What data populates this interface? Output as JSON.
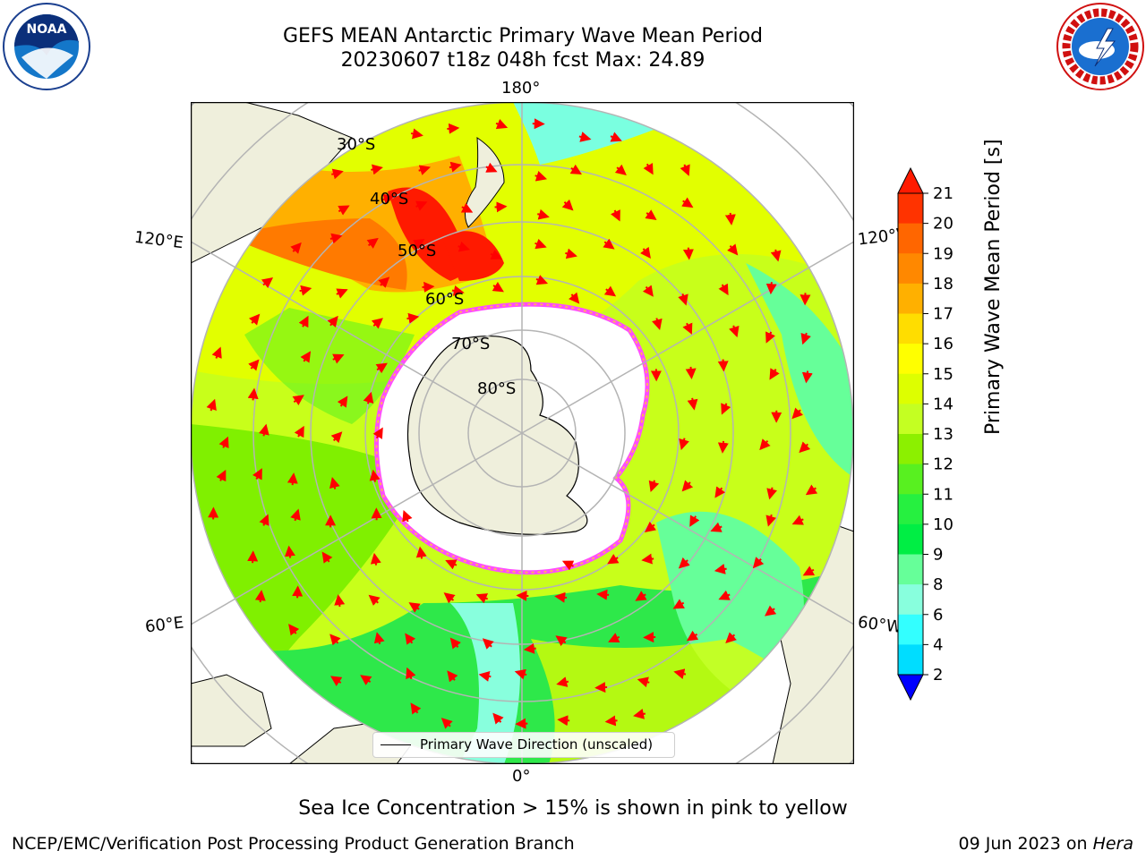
{
  "header": {
    "title_line1": "GEFS MEAN Antarctic Primary Wave Mean Period",
    "title_line2": "20230607 t18z 048h fcst   Max: 24.89"
  },
  "logos": {
    "noaa": "NOAA",
    "nws": "NATIONAL WEATHER SERVICE"
  },
  "map": {
    "lon_labels": {
      "top": "180°",
      "left_upper": "120°E",
      "right_upper": "120°W",
      "left_lower": "60°E",
      "right_lower": "60°W",
      "bottom": "0°"
    },
    "lat_labels": [
      "30°S",
      "40°S",
      "50°S",
      "60°S",
      "70°S",
      "80°S"
    ],
    "colors": {
      "land": "#efefdc",
      "sea_ice": "#ff4dff",
      "arrow": "#ff0000",
      "grid": "#b4b4b4"
    },
    "legend_text": "Primary Wave Direction (unscaled)"
  },
  "colorbar": {
    "title": "Primary Wave Mean Period [s]",
    "ticks": [
      "21",
      "20",
      "19",
      "18",
      "17",
      "16",
      "15",
      "14",
      "13",
      "12",
      "11",
      "10",
      "9",
      "8",
      "6",
      "4",
      "2"
    ],
    "colors": [
      "#ff1a00",
      "#ff3300",
      "#ff6600",
      "#ff8800",
      "#ffb000",
      "#ffdd00",
      "#ffff00",
      "#ddff00",
      "#c4ff22",
      "#8cf000",
      "#58f020",
      "#26f040",
      "#00ee44",
      "#66ff99",
      "#88ffdd",
      "#33ffff",
      "#00ddff",
      "#1166ff",
      "#0000ff"
    ]
  },
  "footer": {
    "note": "Sea Ice Concentration > 15% is shown in pink to yellow",
    "credit": "NCEP/EMC/Verification Post Processing Product Generation Branch",
    "date": "09 Jun 2023 on",
    "machine": "Hera"
  }
}
